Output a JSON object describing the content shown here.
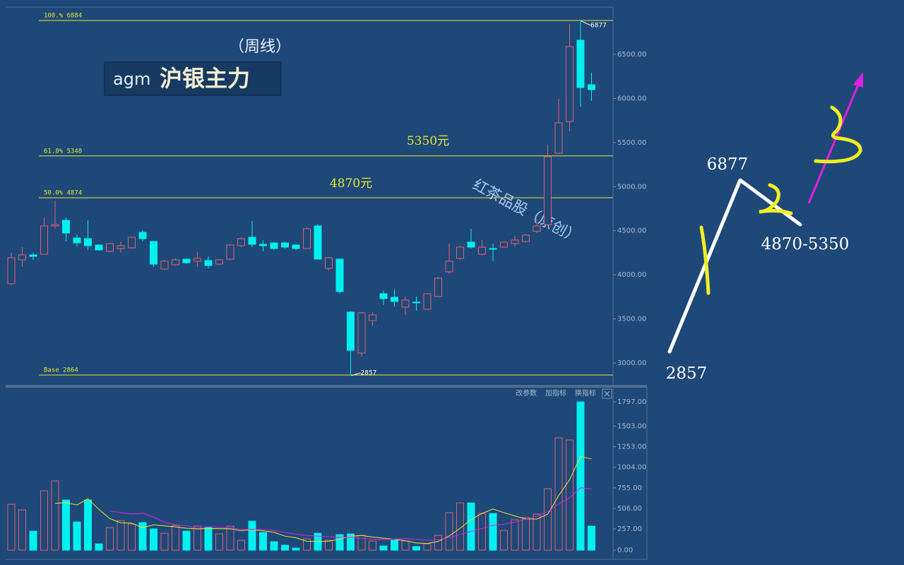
{
  "chart_data": {
    "type": "candlestick",
    "symbol": "agm",
    "title": "沪银主力",
    "subtitle": "（周线）",
    "watermark": "红茶品股（原创）",
    "up_color": "#e0606c",
    "down_color": "#00f0f0",
    "open": [
      3898,
      4170,
      4226,
      4234,
      4554,
      4618,
      4418,
      4410,
      4338,
      4266,
      4298,
      4306,
      4482,
      4378,
      4066,
      4114,
      4178,
      4154,
      4162,
      4122,
      4178,
      4330,
      4426,
      4346,
      4362,
      4362,
      4338,
      4298,
      4554,
      4074,
      4178,
      3577,
      3113,
      3481,
      3786,
      3746,
      3634,
      3690,
      3610,
      3754,
      4034,
      4186,
      4370,
      4234,
      4298,
      4314,
      4354,
      4378,
      4494,
      4570,
      5379,
      5739,
      6660,
      6156
    ],
    "close": [
      4194,
      4226,
      4210,
      4554,
      4570,
      4474,
      4362,
      4330,
      4282,
      4354,
      4330,
      4426,
      4410,
      4122,
      4154,
      4170,
      4138,
      4186,
      4106,
      4170,
      4338,
      4410,
      4346,
      4330,
      4298,
      4314,
      4298,
      4522,
      4178,
      4194,
      3810,
      3145,
      3569,
      3545,
      3730,
      3698,
      3714,
      3682,
      3786,
      3962,
      4154,
      4314,
      4314,
      4314,
      4290,
      4370,
      4394,
      4450,
      4554,
      5339,
      5723,
      6588,
      6124,
      6100
    ],
    "high": [
      4250,
      4314,
      4250,
      4650,
      4842,
      4650,
      4458,
      4618,
      4346,
      4362,
      4378,
      4434,
      4506,
      4386,
      4170,
      4186,
      4186,
      4258,
      4210,
      4178,
      4346,
      4426,
      4610,
      4394,
      4378,
      4378,
      4346,
      4538,
      4578,
      4202,
      4186,
      3590,
      3577,
      3577,
      3818,
      3834,
      3754,
      3754,
      3794,
      3970,
      4354,
      4330,
      4522,
      4394,
      4354,
      4378,
      4442,
      4466,
      4634,
      5475,
      5996,
      6844,
      6877,
      6292
    ],
    "low": [
      3882,
      4090,
      4170,
      4226,
      4522,
      4378,
      4322,
      4282,
      4274,
      4258,
      4250,
      4298,
      4378,
      4090,
      4050,
      4106,
      4122,
      4090,
      4074,
      4114,
      4170,
      4314,
      4314,
      4266,
      4282,
      4298,
      4282,
      4290,
      4170,
      4050,
      3786,
      2857,
      3073,
      3420,
      3658,
      3642,
      3545,
      3594,
      3602,
      3746,
      4010,
      4170,
      4298,
      4218,
      4154,
      4306,
      4314,
      4370,
      4474,
      4554,
      5371,
      5627,
      5907,
      5972
    ],
    "volume": [
      556,
      488,
      231,
      719,
      839,
      608,
      342,
      608,
      77,
      274,
      359,
      317,
      334,
      257,
      205,
      300,
      231,
      291,
      282,
      197,
      291,
      120,
      351,
      214,
      103,
      60,
      26,
      137,
      205,
      120,
      188,
      197,
      180,
      111,
      51,
      120,
      111,
      43,
      77,
      180,
      454,
      573,
      573,
      445,
      445,
      240,
      368,
      394,
      436,
      744,
      1361,
      1335,
      1797,
      291
    ],
    "ylim": [
      2752,
      7036
    ],
    "yticks": [
      {
        "value": 3000,
        "label": "3000.00"
      },
      {
        "value": 3500,
        "label": "3500.00"
      },
      {
        "value": 4000,
        "label": "4000.00"
      },
      {
        "value": 4500,
        "label": "4500.00"
      },
      {
        "value": 5000,
        "label": "5000.00"
      },
      {
        "value": 5500,
        "label": "5500.00"
      },
      {
        "value": 6000,
        "label": "6000.00"
      },
      {
        "value": 6500,
        "label": "6500.00"
      }
    ],
    "levels": [
      {
        "value": 6884,
        "label": "100.% 6884"
      },
      {
        "value": 5348,
        "label": "61.8% 5348"
      },
      {
        "value": 4874,
        "label": "50.0% 4874"
      },
      {
        "value": 2864,
        "label": "Base  2864"
      }
    ],
    "level_color": "#e8e830",
    "level_notes": [
      {
        "value": 5350,
        "label": "5350元"
      },
      {
        "value": 4870,
        "label": "4870元"
      }
    ],
    "price_marks": [
      {
        "value": 6877,
        "label": "6877"
      },
      {
        "value": 2857,
        "label": "2857"
      }
    ],
    "volume_ylim": [
      -94,
      1874
    ],
    "volume_yticks": [
      {
        "value": 0,
        "label": "0.00"
      },
      {
        "value": 257,
        "label": "257.00"
      },
      {
        "value": 506,
        "label": "506.00"
      },
      {
        "value": 755,
        "label": "755.00"
      },
      {
        "value": 1004,
        "label": "1004.00"
      },
      {
        "value": 1253,
        "label": "1253.00"
      },
      {
        "value": 1503,
        "label": "1503.00"
      },
      {
        "value": 1797,
        "label": "1797.00"
      }
    ],
    "moving_averages": [
      {
        "period": 5,
        "color": "#e8e830"
      },
      {
        "period": 10,
        "color": "#e020e0"
      }
    ],
    "buttons": [
      "改参数",
      "加指标",
      "换指标"
    ],
    "sketch": {
      "high": "6877",
      "range": "4870-5350",
      "low": "2857"
    }
  }
}
